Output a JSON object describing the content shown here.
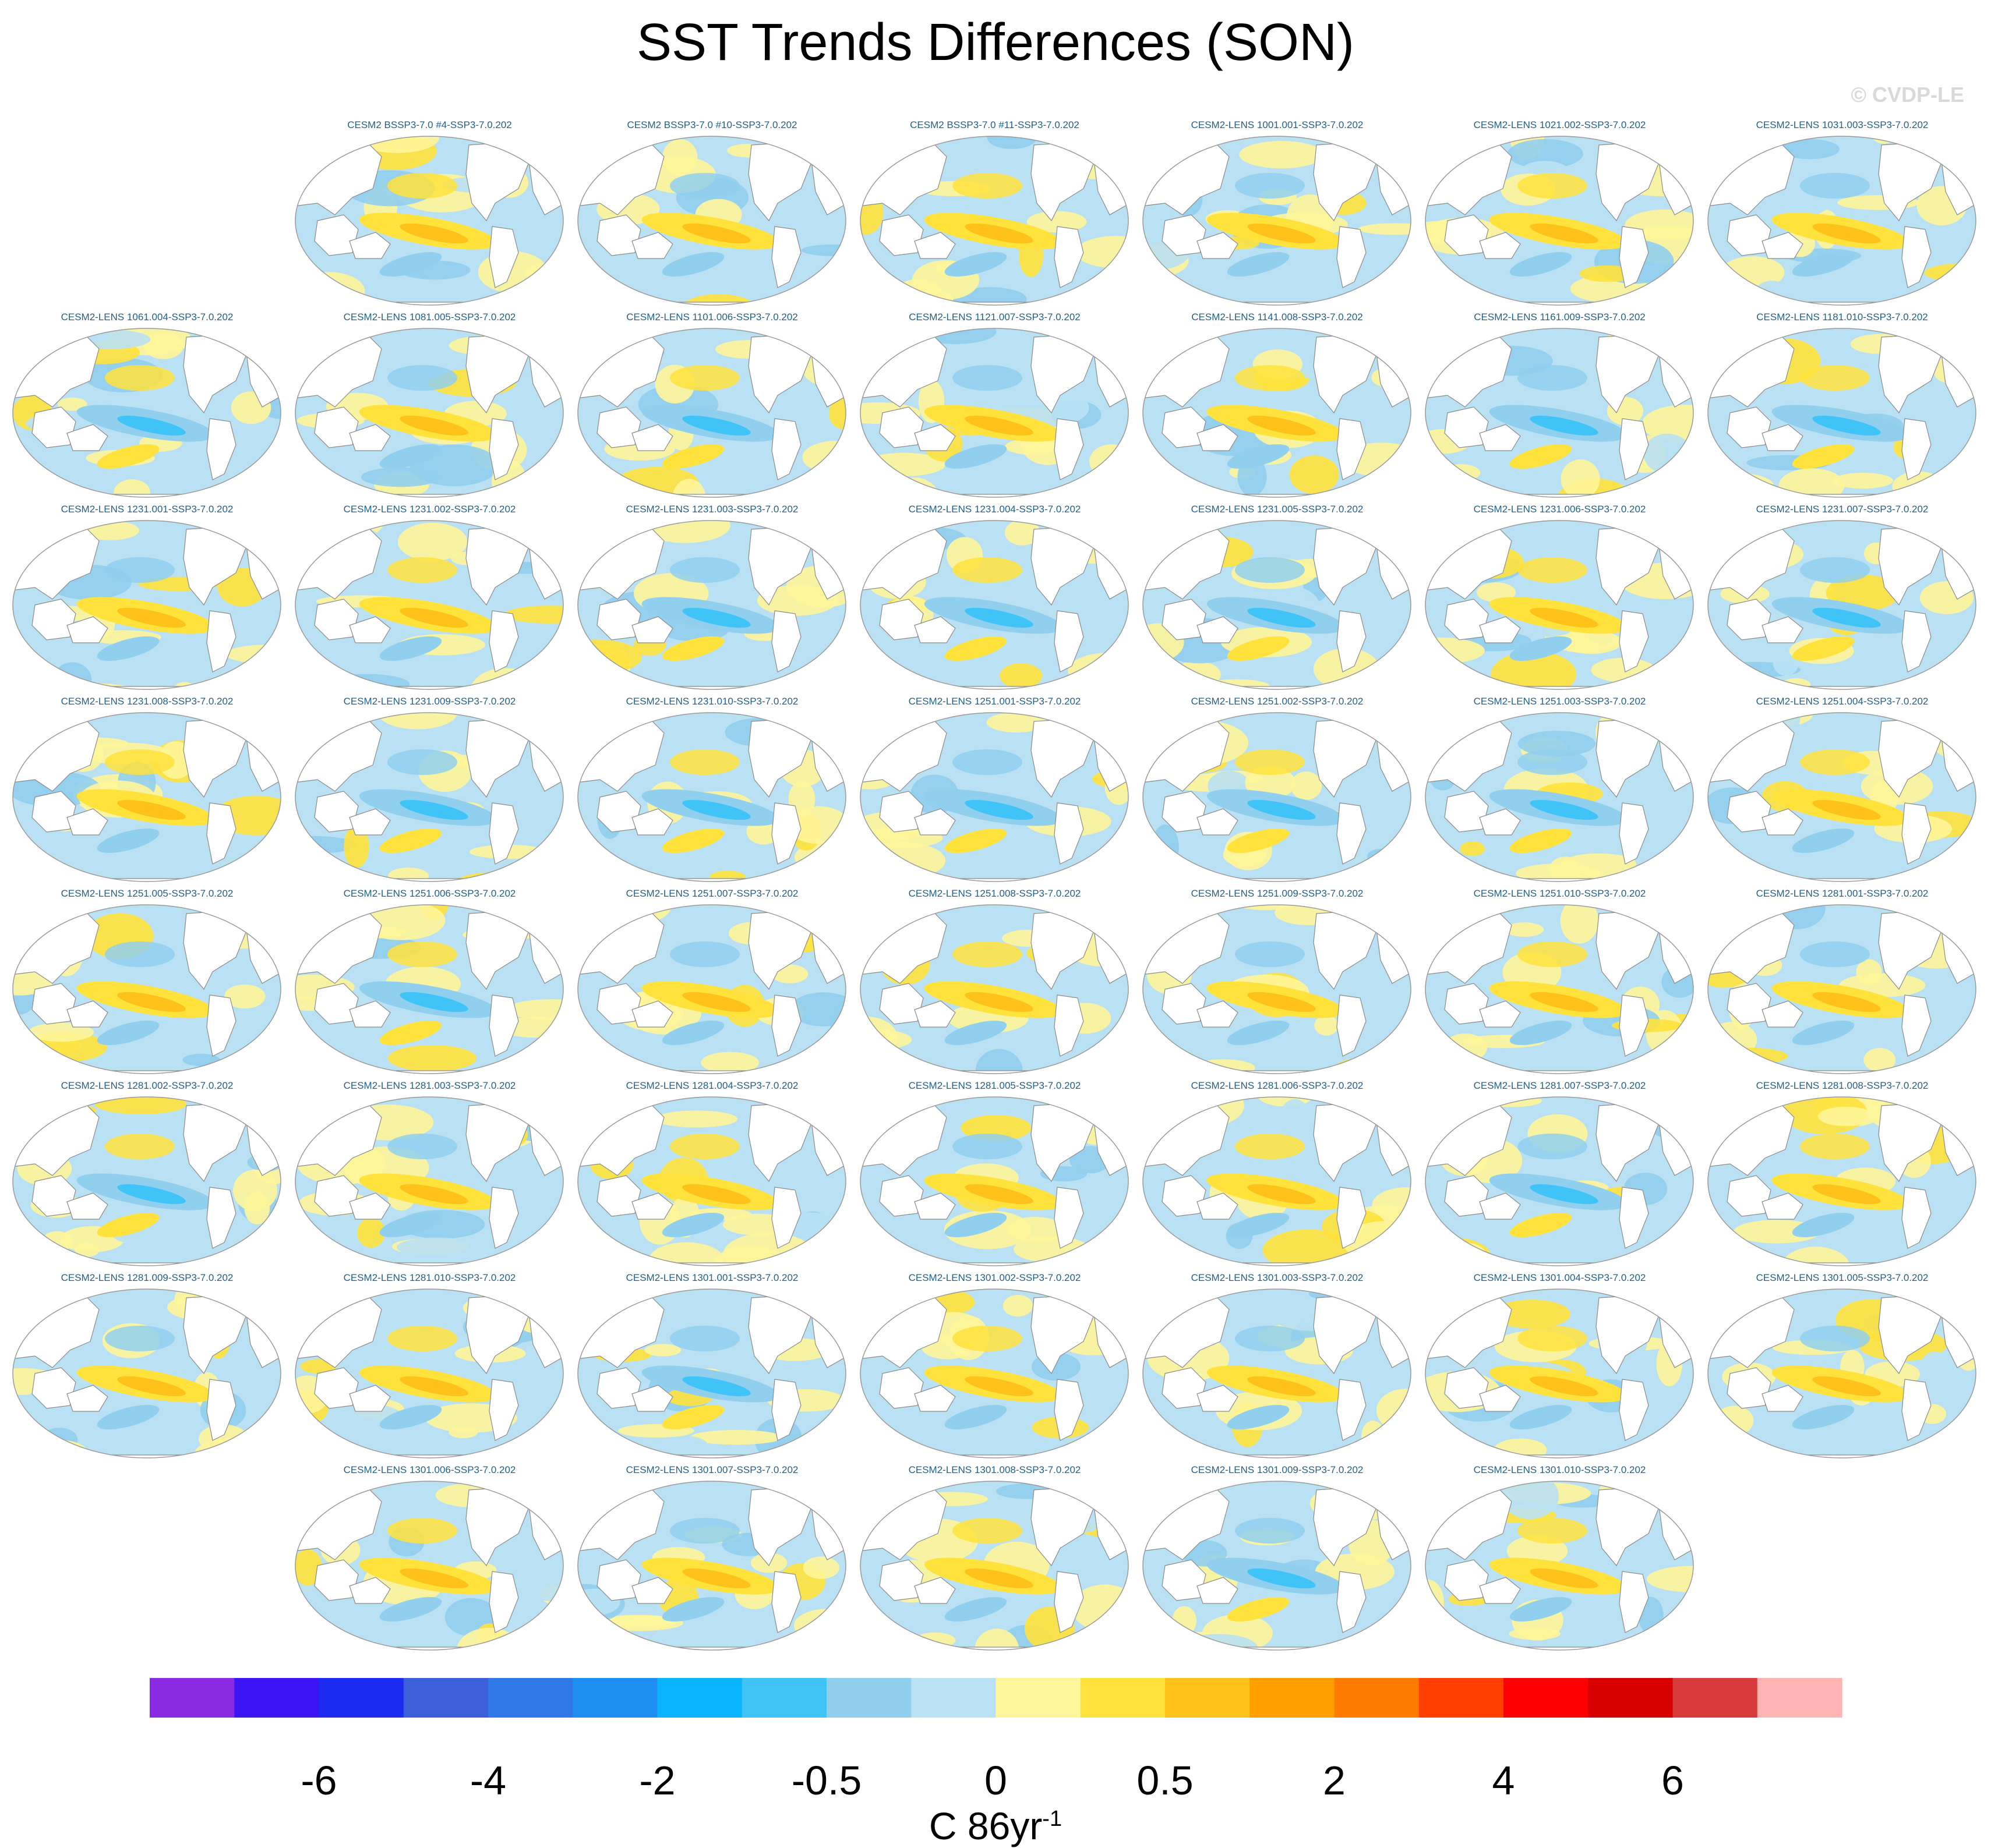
{
  "title": "SST Trends Differences (SON)",
  "watermark": "© CVDP-LE",
  "units": {
    "base": "C 86yr",
    "exp": "-1"
  },
  "colors": {
    "colorbar": [
      "#8a2be2",
      "#3c15f5",
      "#1c2cf0",
      "#3c5ed8",
      "#2f78e8",
      "#1f8ef2",
      "#0ab4ff",
      "#40c4f8",
      "#91cfee",
      "#b9e1f3",
      "#fff59a",
      "#ffe23c",
      "#ffc21a",
      "#ff9f00",
      "#ff7b00",
      "#ff3f00",
      "#ff0000",
      "#d60000",
      "#d63a3a",
      "#ffb4b4"
    ],
    "panel_title": "#1f5f8b",
    "land": "#ffffff",
    "coast": "#8a8a8a"
  },
  "chart_data": {
    "type": "heatmap",
    "title": "SST Trends Differences (SON)",
    "colorbar_label": "C 86yr-1",
    "colorbar_ticks": [
      "-6",
      "-4",
      "-2",
      "-0.5",
      "0",
      "0.5",
      "2",
      "4",
      "6"
    ],
    "panels": [
      [
        "CESM2 BSSP3-7.0 #4-SSP3-7.0.202",
        "CESM2 BSSP3-7.0 #10-SSP3-7.0.202",
        "CESM2 BSSP3-7.0 #11-SSP3-7.0.202",
        "CESM2-LENS 1001.001-SSP3-7.0.202",
        "CESM2-LENS 1021.002-SSP3-7.0.202",
        "CESM2-LENS 1031.003-SSP3-7.0.202"
      ],
      [
        "CESM2-LENS 1061.004-SSP3-7.0.202",
        "CESM2-LENS 1081.005-SSP3-7.0.202",
        "CESM2-LENS 1101.006-SSP3-7.0.202",
        "CESM2-LENS 1121.007-SSP3-7.0.202",
        "CESM2-LENS 1141.008-SSP3-7.0.202",
        "CESM2-LENS 1161.009-SSP3-7.0.202",
        "CESM2-LENS 1181.010-SSP3-7.0.202"
      ],
      [
        "CESM2-LENS 1231.001-SSP3-7.0.202",
        "CESM2-LENS 1231.002-SSP3-7.0.202",
        "CESM2-LENS 1231.003-SSP3-7.0.202",
        "CESM2-LENS 1231.004-SSP3-7.0.202",
        "CESM2-LENS 1231.005-SSP3-7.0.202",
        "CESM2-LENS 1231.006-SSP3-7.0.202",
        "CESM2-LENS 1231.007-SSP3-7.0.202"
      ],
      [
        "CESM2-LENS 1231.008-SSP3-7.0.202",
        "CESM2-LENS 1231.009-SSP3-7.0.202",
        "CESM2-LENS 1231.010-SSP3-7.0.202",
        "CESM2-LENS 1251.001-SSP3-7.0.202",
        "CESM2-LENS 1251.002-SSP3-7.0.202",
        "CESM2-LENS 1251.003-SSP3-7.0.202",
        "CESM2-LENS 1251.004-SSP3-7.0.202"
      ],
      [
        "CESM2-LENS 1251.005-SSP3-7.0.202",
        "CESM2-LENS 1251.006-SSP3-7.0.202",
        "CESM2-LENS 1251.007-SSP3-7.0.202",
        "CESM2-LENS 1251.008-SSP3-7.0.202",
        "CESM2-LENS 1251.009-SSP3-7.0.202",
        "CESM2-LENS 1251.010-SSP3-7.0.202",
        "CESM2-LENS 1281.001-SSP3-7.0.202"
      ],
      [
        "CESM2-LENS 1281.002-SSP3-7.0.202",
        "CESM2-LENS 1281.003-SSP3-7.0.202",
        "CESM2-LENS 1281.004-SSP3-7.0.202",
        "CESM2-LENS 1281.005-SSP3-7.0.202",
        "CESM2-LENS 1281.006-SSP3-7.0.202",
        "CESM2-LENS 1281.007-SSP3-7.0.202",
        "CESM2-LENS 1281.008-SSP3-7.0.202"
      ],
      [
        "CESM2-LENS 1281.009-SSP3-7.0.202",
        "CESM2-LENS 1281.010-SSP3-7.0.202",
        "CESM2-LENS 1301.001-SSP3-7.0.202",
        "CESM2-LENS 1301.002-SSP3-7.0.202",
        "CESM2-LENS 1301.003-SSP3-7.0.202",
        "CESM2-LENS 1301.004-SSP3-7.0.202",
        "CESM2-LENS 1301.005-SSP3-7.0.202"
      ],
      [
        "CESM2-LENS 1301.006-SSP3-7.0.202",
        "CESM2-LENS 1301.007-SSP3-7.0.202",
        "CESM2-LENS 1301.008-SSP3-7.0.202",
        "CESM2-LENS 1301.009-SSP3-7.0.202",
        "CESM2-LENS 1301.010-SSP3-7.0.202"
      ]
    ],
    "tropical_pacific_sign": [
      [
        1,
        1,
        1,
        1,
        1,
        1
      ],
      [
        -1,
        1,
        -1,
        1,
        1,
        -1,
        -1
      ],
      [
        1,
        1,
        -1,
        -1,
        -1,
        1,
        -1
      ],
      [
        1,
        -1,
        -1,
        -1,
        -1,
        -1,
        1
      ],
      [
        1,
        -1,
        1,
        1,
        1,
        1,
        1
      ],
      [
        -1,
        1,
        1,
        1,
        1,
        -1,
        1
      ],
      [
        1,
        1,
        -1,
        1,
        1,
        1,
        1
      ],
      [
        1,
        1,
        1,
        -1,
        1
      ]
    ]
  }
}
